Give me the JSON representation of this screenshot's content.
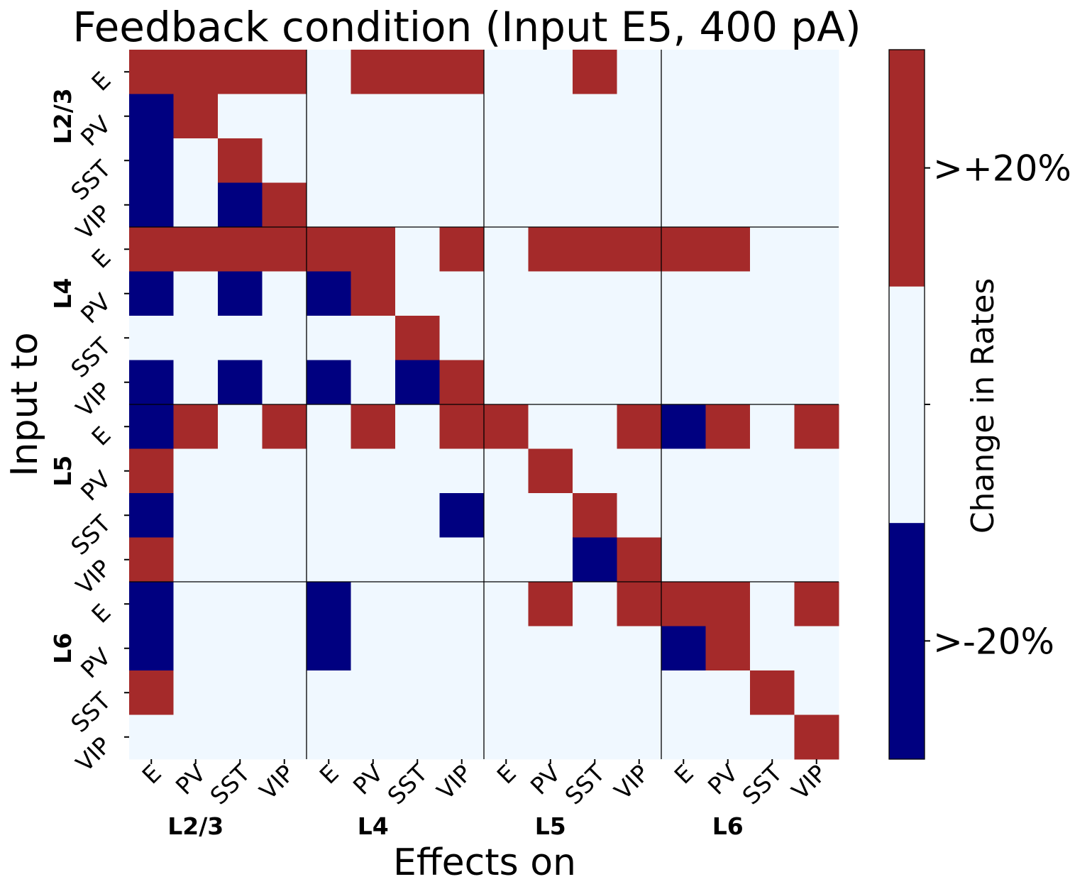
{
  "chart_data": {
    "type": "heatmap",
    "title": "Feedback condition (Input E5, 400 pA)",
    "xlabel": "Effects on",
    "ylabel": "Input to",
    "x_tick_labels": [
      "E",
      "PV",
      "SST",
      "VIP",
      "E",
      "PV",
      "SST",
      "VIP",
      "E",
      "PV",
      "SST",
      "VIP",
      "E",
      "PV",
      "SST",
      "VIP"
    ],
    "y_tick_labels": [
      "E",
      "PV",
      "SST",
      "VIP",
      "E",
      "PV",
      "SST",
      "VIP",
      "E",
      "PV",
      "SST",
      "VIP",
      "E",
      "PV",
      "SST",
      "VIP"
    ],
    "x_groups": [
      "L2/3",
      "L4",
      "L5",
      "L6"
    ],
    "y_groups": [
      "L2/3",
      "L4",
      "L5",
      "L6"
    ],
    "values": [
      [
        1,
        1,
        1,
        1,
        0,
        1,
        1,
        1,
        0,
        0,
        1,
        0,
        0,
        0,
        0,
        0
      ],
      [
        -1,
        1,
        0,
        0,
        0,
        0,
        0,
        0,
        0,
        0,
        0,
        0,
        0,
        0,
        0,
        0
      ],
      [
        -1,
        0,
        1,
        0,
        0,
        0,
        0,
        0,
        0,
        0,
        0,
        0,
        0,
        0,
        0,
        0
      ],
      [
        -1,
        0,
        -1,
        1,
        0,
        0,
        0,
        0,
        0,
        0,
        0,
        0,
        0,
        0,
        0,
        0
      ],
      [
        1,
        1,
        1,
        1,
        1,
        1,
        0,
        1,
        0,
        1,
        1,
        1,
        1,
        1,
        0,
        0
      ],
      [
        -1,
        0,
        -1,
        0,
        -1,
        1,
        0,
        0,
        0,
        0,
        0,
        0,
        0,
        0,
        0,
        0
      ],
      [
        0,
        0,
        0,
        0,
        0,
        0,
        1,
        0,
        0,
        0,
        0,
        0,
        0,
        0,
        0,
        0
      ],
      [
        -1,
        0,
        -1,
        0,
        -1,
        0,
        -1,
        1,
        0,
        0,
        0,
        0,
        0,
        0,
        0,
        0
      ],
      [
        -1,
        1,
        0,
        1,
        0,
        1,
        0,
        1,
        1,
        0,
        0,
        1,
        -1,
        1,
        0,
        1
      ],
      [
        1,
        0,
        0,
        0,
        0,
        0,
        0,
        0,
        0,
        1,
        0,
        0,
        0,
        0,
        0,
        0
      ],
      [
        -1,
        0,
        0,
        0,
        0,
        0,
        0,
        -1,
        0,
        0,
        1,
        0,
        0,
        0,
        0,
        0
      ],
      [
        1,
        0,
        0,
        0,
        0,
        0,
        0,
        0,
        0,
        0,
        -1,
        1,
        0,
        0,
        0,
        0
      ],
      [
        -1,
        0,
        0,
        0,
        -1,
        0,
        0,
        0,
        0,
        1,
        0,
        1,
        1,
        1,
        0,
        1
      ],
      [
        -1,
        0,
        0,
        0,
        -1,
        0,
        0,
        0,
        0,
        0,
        0,
        0,
        -1,
        1,
        0,
        0
      ],
      [
        1,
        0,
        0,
        0,
        0,
        0,
        0,
        0,
        0,
        0,
        0,
        0,
        0,
        0,
        1,
        0
      ],
      [
        0,
        0,
        0,
        0,
        0,
        0,
        0,
        0,
        0,
        0,
        0,
        0,
        0,
        0,
        0,
        1
      ]
    ],
    "colors": {
      "-1": "#000080",
      "0": "#f0f8ff",
      "1": "#a52a2a"
    },
    "colorbar": {
      "label": "Change in Rates",
      "ticks": [
        ">+20%",
        "",
        ">-20%"
      ],
      "colors_bottom_to_top": [
        "#000080",
        "#f0f8ff",
        "#a52a2a"
      ]
    },
    "group_separator_color": "#000000"
  }
}
